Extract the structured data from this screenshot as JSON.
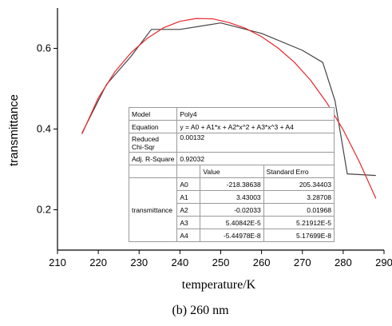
{
  "chart_data": {
    "type": "line",
    "xlabel": "temperature/K",
    "ylabel": "transmittance",
    "caption": "(b) 260 nm",
    "xlim": [
      210,
      290
    ],
    "ylim": [
      0.1,
      0.7
    ],
    "xticks": [
      210,
      220,
      230,
      240,
      250,
      260,
      270,
      280,
      290
    ],
    "yticks": [
      0.2,
      0.4,
      0.6
    ],
    "grid": false,
    "colors": {
      "data": "#444444",
      "fit": "#e8262a"
    },
    "series": [
      {
        "x": [
          216,
          222,
          228,
          233,
          240,
          250,
          260,
          270,
          275,
          278,
          281,
          288
        ],
        "y": [
          0.39,
          0.51,
          0.58,
          0.647,
          0.647,
          0.663,
          0.637,
          0.595,
          0.565,
          0.47,
          0.289,
          0.285
        ]
      },
      {
        "x": [
          216,
          220,
          224,
          228,
          232,
          236,
          240,
          244,
          248,
          252,
          256,
          260,
          264,
          268,
          272,
          276,
          280,
          284,
          288
        ],
        "y": [
          0.388,
          0.477,
          0.541,
          0.589,
          0.625,
          0.651,
          0.667,
          0.674,
          0.673,
          0.664,
          0.65,
          0.629,
          0.601,
          0.566,
          0.521,
          0.465,
          0.398,
          0.318,
          0.228
        ]
      }
    ],
    "fit_table": {
      "model_label": "Model",
      "model_value": "Poly4",
      "equation_label": "Equation",
      "equation_value": "y = A0 + A1*x + A2*x^2 + A3*x^3 + A4",
      "chisqr_label_1": "Reduced",
      "chisqr_label_2": "Chi-Sqr",
      "chisqr_value": "0.00132",
      "rsq_label": "Adj. R-Square",
      "rsq_value": "0.92032",
      "col_value": "Value",
      "col_error": "Standard Erro",
      "row_group": "transmittance",
      "rows": [
        {
          "param": "A0",
          "value": "-218.38638",
          "error": "205.34403"
        },
        {
          "param": "A1",
          "value": "3.43003",
          "error": "3.28708"
        },
        {
          "param": "A2",
          "value": "-0.02033",
          "error": "0.01968"
        },
        {
          "param": "A3",
          "value": "5.40842E-5",
          "error": "5.21912E-5"
        },
        {
          "param": "A4",
          "value": "-5.44978E-8",
          "error": "5.17699E-8"
        }
      ]
    }
  }
}
